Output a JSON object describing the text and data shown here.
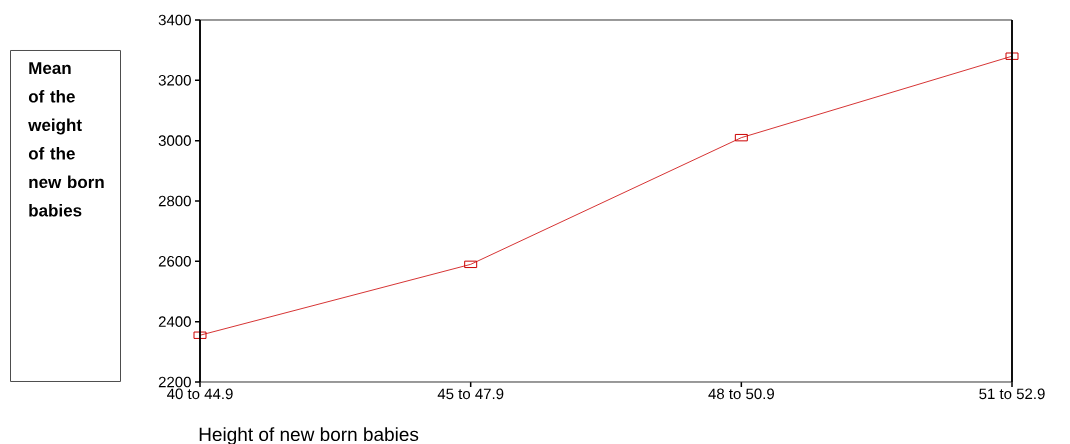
{
  "chart_data": {
    "type": "line",
    "xlabel": "Height of new born babies",
    "ylabel": "Mean of the weight of the new born babies",
    "categories": [
      "40 to 44.9",
      "45 to 47.9",
      "48 to 50.9",
      "51 to 52.9"
    ],
    "values": [
      2355,
      2590,
      3010,
      3280
    ],
    "color": "#cc0000",
    "marker": "square",
    "ylim": [
      2200,
      3400
    ],
    "yticks": [
      2200,
      2400,
      2600,
      2800,
      3000,
      3200,
      3400
    ]
  }
}
